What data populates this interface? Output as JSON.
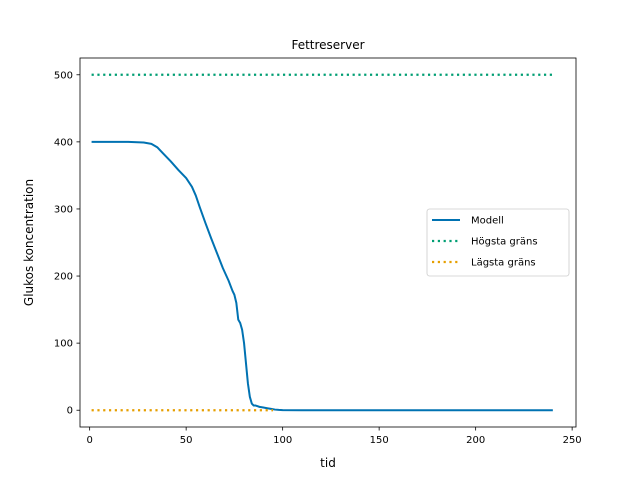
{
  "chart_data": {
    "type": "line",
    "title": "Fettreserver",
    "xlabel": "tid",
    "ylabel": "Glukos koncentration",
    "xlim": [
      -5,
      252
    ],
    "ylim": [
      -25,
      525
    ],
    "xticks": [
      0,
      50,
      100,
      150,
      200,
      250
    ],
    "yticks": [
      0,
      100,
      200,
      300,
      400,
      500
    ],
    "grid": false,
    "legend_position": "center-right",
    "series": [
      {
        "name": "Modell",
        "color": "#0072B2",
        "style": "solid",
        "x": [
          1,
          10,
          20,
          28,
          32,
          35,
          38,
          42,
          46,
          50,
          53,
          55,
          57,
          60,
          63,
          66,
          69,
          72,
          74,
          75,
          76,
          77,
          78,
          79,
          80,
          81,
          82,
          83,
          84,
          85,
          86,
          87,
          88,
          90,
          92,
          94,
          96,
          98,
          100,
          110,
          150,
          200,
          240
        ],
        "y": [
          400,
          400,
          400,
          399,
          397,
          392,
          383,
          371,
          358,
          346,
          333,
          320,
          303,
          279,
          256,
          234,
          212,
          193,
          178,
          172,
          160,
          135,
          130,
          120,
          100,
          70,
          40,
          20,
          10,
          7,
          7,
          6,
          5,
          4,
          3,
          2,
          1,
          0.5,
          0.2,
          0,
          0,
          0,
          0
        ]
      },
      {
        "name": "Högsta gräns",
        "color": "#009E73",
        "style": "dotted",
        "x": [
          1,
          240
        ],
        "y": [
          500,
          500
        ]
      },
      {
        "name": "Lägsta gräns",
        "color": "#E69F00",
        "style": "dotted",
        "x": [
          1,
          95
        ],
        "y": [
          0,
          0
        ]
      }
    ]
  }
}
